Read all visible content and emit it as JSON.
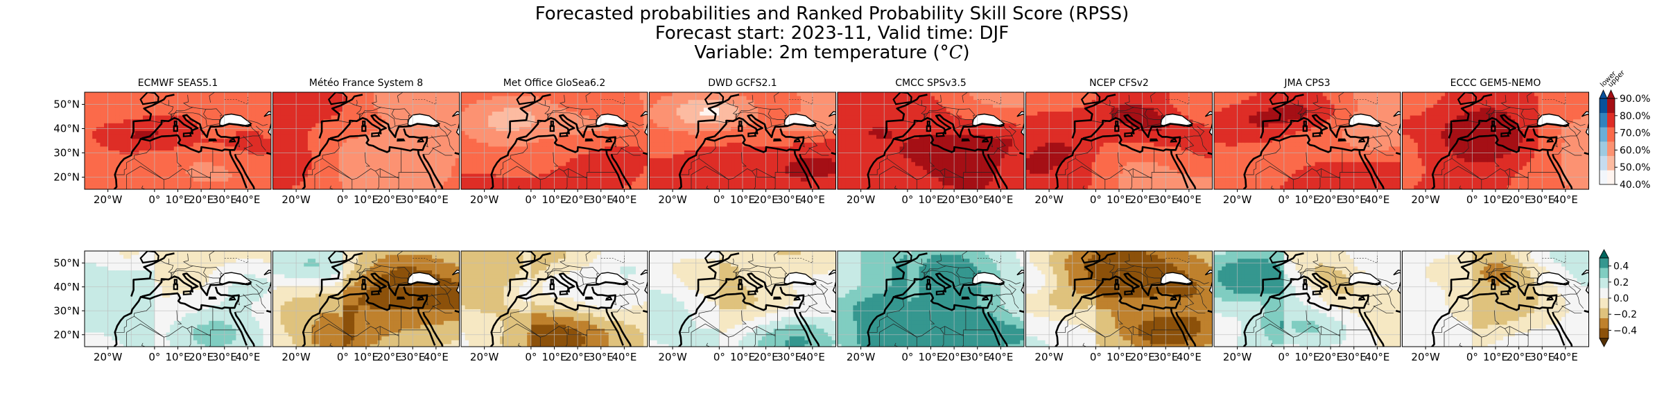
{
  "title": {
    "line1": "Forecasted probabilities and Ranked Probability Skill Score (RPSS)",
    "line2": "Forecast start: 2023-11, Valid time: DJF",
    "line3_prefix": "Variable: 2m temperature (",
    "line3_unit": "°C",
    "line3_suffix": ")"
  },
  "chart_data": {
    "type": "heatmap",
    "rows": [
      "probability",
      "rpss"
    ],
    "models": [
      "ECMWF SEAS5.1",
      "Météo France System 8",
      "Met Office GloSea6.2",
      "DWD GCFS2.1",
      "CMCC SPSv3.5",
      "NCEP CFSv2",
      "JMA CPS3",
      "ECCC GEM5-NEMO"
    ],
    "x_ticks": [
      "20°W",
      "0°",
      "10°E",
      "20°E",
      "30°E",
      "40°E"
    ],
    "x_tick_values": [
      -20,
      0,
      10,
      20,
      30,
      40
    ],
    "y_ticks": [
      "50°N",
      "40°N",
      "30°N",
      "20°N"
    ],
    "y_tick_values": [
      50,
      40,
      30,
      20
    ],
    "xlim": [
      -30,
      50
    ],
    "ylim": [
      15,
      55
    ],
    "grid": true,
    "probability_colorbar": {
      "header_left": "lower",
      "header_right": "upper",
      "ticks": [
        "90.0%",
        "80.0%",
        "70.0%",
        "60.0%",
        "50.0%",
        "40.0%"
      ],
      "tick_values": [
        90,
        80,
        70,
        60,
        50,
        40
      ],
      "lower_colors": [
        "#f2f6fb",
        "#c6dbef",
        "#9ecae1",
        "#6baed6",
        "#3182bd",
        "#08519c"
      ],
      "upper_colors": [
        "#fff5f0",
        "#fcbba1",
        "#fc9272",
        "#fb6a4a",
        "#de2d26",
        "#a50f15"
      ]
    },
    "rpss_colorbar": {
      "ticks": [
        "0.4",
        "0.2",
        "0.0",
        "−0.2",
        "−0.4"
      ],
      "tick_values": [
        0.4,
        0.2,
        0.0,
        -0.2,
        -0.4
      ],
      "colors": [
        "#01665e",
        "#35978f",
        "#80cdc1",
        "#c7eae5",
        "#f5f5f5",
        "#f6e8c3",
        "#dfc27d",
        "#bf812d",
        "#8c510a",
        "#543005"
      ]
    }
  }
}
